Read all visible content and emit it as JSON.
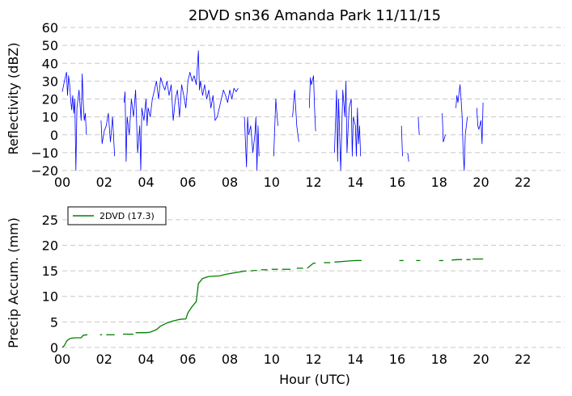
{
  "figure": {
    "title": "2DVD sn36 Amanda Park 11/11/15",
    "xlabel": "Hour (UTC)"
  },
  "chart_data": [
    {
      "type": "line",
      "ylabel": "Reflectivity (dBZ)",
      "xlim": [
        0,
        24
      ],
      "ylim": [
        -20,
        60
      ],
      "x_ticks": [
        0,
        2,
        4,
        6,
        8,
        10,
        12,
        14,
        16,
        18,
        20,
        22
      ],
      "x_tick_labels": [
        "00",
        "02",
        "04",
        "06",
        "08",
        "10",
        "12",
        "14",
        "16",
        "18",
        "20",
        "22"
      ],
      "y_ticks": [
        -20,
        -10,
        0,
        10,
        20,
        30,
        40,
        50,
        60
      ],
      "y_tick_labels": [
        "−20",
        "−10",
        "0",
        "10",
        "20",
        "30",
        "40",
        "50",
        "60"
      ],
      "grid": "horizontal dashed",
      "legend": "none",
      "series": [
        {
          "color": "#0000ff",
          "segments": [
            [
              [
                0.0,
                24
              ],
              [
                0.1,
                30
              ],
              [
                0.2,
                35
              ],
              [
                0.25,
                22
              ],
              [
                0.3,
                33
              ],
              [
                0.35,
                28
              ],
              [
                0.4,
                20
              ],
              [
                0.45,
                14
              ],
              [
                0.5,
                22
              ],
              [
                0.55,
                12
              ],
              [
                0.6,
                20
              ],
              [
                0.65,
                -20
              ],
              [
                0.7,
                15
              ],
              [
                0.8,
                25
              ],
              [
                0.9,
                8
              ],
              [
                0.95,
                34
              ],
              [
                1.0,
                18
              ],
              [
                1.05,
                8
              ],
              [
                1.1,
                12
              ],
              [
                1.15,
                0
              ]
            ],
            [
              [
                1.85,
                8
              ],
              [
                1.9,
                -5
              ],
              [
                2.0,
                2
              ],
              [
                2.1,
                5
              ],
              [
                2.2,
                12
              ],
              [
                2.3,
                -4
              ],
              [
                2.4,
                10
              ],
              [
                2.5,
                -12
              ]
            ],
            [
              [
                2.95,
                18
              ],
              [
                3.0,
                24
              ],
              [
                3.05,
                -15
              ],
              [
                3.1,
                10
              ],
              [
                3.2,
                0
              ],
              [
                3.3,
                20
              ],
              [
                3.4,
                10
              ],
              [
                3.5,
                25
              ],
              [
                3.6,
                -10
              ],
              [
                3.7,
                5
              ],
              [
                3.75,
                -20
              ],
              [
                3.8,
                15
              ],
              [
                3.9,
                8
              ],
              [
                4.0,
                20
              ],
              [
                4.05,
                5
              ],
              [
                4.1,
                15
              ],
              [
                4.2,
                10
              ],
              [
                4.3,
                20
              ],
              [
                4.4,
                25
              ],
              [
                4.5,
                30
              ],
              [
                4.6,
                20
              ],
              [
                4.7,
                32
              ],
              [
                4.8,
                28
              ],
              [
                4.9,
                25
              ],
              [
                5.0,
                30
              ],
              [
                5.1,
                22
              ],
              [
                5.2,
                28
              ],
              [
                5.3,
                8
              ],
              [
                5.4,
                20
              ],
              [
                5.5,
                25
              ],
              [
                5.6,
                10
              ],
              [
                5.7,
                28
              ],
              [
                5.8,
                22
              ],
              [
                5.9,
                15
              ],
              [
                6.0,
                30
              ],
              [
                6.1,
                35
              ],
              [
                6.2,
                30
              ],
              [
                6.3,
                33
              ],
              [
                6.4,
                28
              ],
              [
                6.5,
                47
              ],
              [
                6.55,
                25
              ],
              [
                6.6,
                30
              ],
              [
                6.7,
                22
              ],
              [
                6.8,
                28
              ],
              [
                6.9,
                20
              ],
              [
                7.0,
                25
              ],
              [
                7.1,
                15
              ],
              [
                7.2,
                22
              ],
              [
                7.3,
                8
              ],
              [
                7.4,
                10
              ],
              [
                7.5,
                15
              ],
              [
                7.6,
                20
              ],
              [
                7.7,
                25
              ],
              [
                7.8,
                22
              ],
              [
                7.9,
                18
              ],
              [
                8.0,
                25
              ],
              [
                8.1,
                20
              ],
              [
                8.2,
                26
              ],
              [
                8.3,
                24
              ],
              [
                8.4,
                26
              ]
            ],
            [
              [
                8.7,
                10
              ],
              [
                8.8,
                -18
              ],
              [
                8.85,
                10
              ],
              [
                8.9,
                0
              ],
              [
                9.0,
                5
              ],
              [
                9.1,
                -10
              ],
              [
                9.2,
                0
              ],
              [
                9.25,
                10
              ],
              [
                9.3,
                -20
              ],
              [
                9.35,
                5
              ],
              [
                9.4,
                -12
              ]
            ],
            [
              [
                10.1,
                -12
              ],
              [
                10.2,
                20
              ],
              [
                10.3,
                5
              ]
            ],
            [
              [
                11.0,
                10
              ],
              [
                11.1,
                25
              ],
              [
                11.2,
                5
              ],
              [
                11.3,
                -4
              ]
            ],
            [
              [
                11.8,
                15
              ],
              [
                11.85,
                32
              ],
              [
                11.9,
                28
              ],
              [
                12.0,
                33
              ],
              [
                12.05,
                15
              ],
              [
                12.1,
                2
              ]
            ],
            [
              [
                13.0,
                -10
              ],
              [
                13.1,
                25
              ],
              [
                13.15,
                -15
              ],
              [
                13.2,
                20
              ],
              [
                13.3,
                -20
              ],
              [
                13.4,
                25
              ],
              [
                13.5,
                10
              ],
              [
                13.55,
                30
              ],
              [
                13.6,
                -10
              ],
              [
                13.7,
                15
              ],
              [
                13.8,
                20
              ],
              [
                13.85,
                -12
              ],
              [
                13.9,
                10
              ],
              [
                14.0,
                5
              ],
              [
                14.05,
                -12
              ],
              [
                14.1,
                15
              ],
              [
                14.15,
                -5
              ],
              [
                14.2,
                5
              ],
              [
                14.25,
                -12
              ]
            ],
            [
              [
                16.2,
                5
              ],
              [
                16.25,
                -12
              ]
            ],
            [
              [
                16.5,
                -10
              ],
              [
                16.55,
                -15
              ]
            ],
            [
              [
                17.0,
                10
              ],
              [
                17.05,
                0
              ]
            ],
            [
              [
                18.15,
                12
              ],
              [
                18.2,
                -4
              ],
              [
                18.3,
                0
              ]
            ],
            [
              [
                18.8,
                15
              ],
              [
                18.85,
                22
              ],
              [
                18.9,
                18
              ],
              [
                19.0,
                28
              ],
              [
                19.05,
                20
              ],
              [
                19.1,
                10
              ],
              [
                19.15,
                -10
              ],
              [
                19.2,
                -20
              ],
              [
                19.25,
                0
              ],
              [
                19.35,
                10
              ]
            ],
            [
              [
                19.8,
                15
              ],
              [
                19.85,
                5
              ],
              [
                19.9,
                3
              ],
              [
                20.0,
                8
              ],
              [
                20.05,
                -5
              ],
              [
                20.1,
                18
              ]
            ]
          ]
        }
      ]
    },
    {
      "type": "line",
      "ylabel": "Precip Accum. (mm)",
      "xlim": [
        0,
        24
      ],
      "ylim": [
        0,
        27.5
      ],
      "x_ticks": [
        0,
        2,
        4,
        6,
        8,
        10,
        12,
        14,
        16,
        18,
        20,
        22
      ],
      "x_tick_labels": [
        "00",
        "02",
        "04",
        "06",
        "08",
        "10",
        "12",
        "14",
        "16",
        "18",
        "20",
        "22"
      ],
      "y_ticks": [
        0,
        5,
        10,
        15,
        20,
        25
      ],
      "y_tick_labels": [
        "0",
        "5",
        "10",
        "15",
        "20",
        "25"
      ],
      "grid": "horizontal dashed",
      "legend": "top-left",
      "series": [
        {
          "name": "2DVD (17.3)",
          "color": "#008000",
          "segments": [
            [
              [
                0.0,
                0.0
              ],
              [
                0.1,
                0.4
              ],
              [
                0.2,
                1.2
              ],
              [
                0.3,
                1.6
              ],
              [
                0.4,
                1.8
              ],
              [
                0.6,
                1.9
              ],
              [
                0.9,
                1.9
              ],
              [
                1.0,
                2.4
              ],
              [
                1.2,
                2.5
              ]
            ],
            [
              [
                1.8,
                2.5
              ],
              [
                1.9,
                2.5
              ]
            ],
            [
              [
                2.1,
                2.5
              ],
              [
                2.5,
                2.5
              ]
            ],
            [
              [
                2.9,
                2.6
              ],
              [
                3.4,
                2.6
              ]
            ],
            [
              [
                3.5,
                2.9
              ],
              [
                4.0,
                2.9
              ],
              [
                4.2,
                3.0
              ],
              [
                4.5,
                3.5
              ],
              [
                4.7,
                4.2
              ],
              [
                5.0,
                4.8
              ],
              [
                5.3,
                5.2
              ],
              [
                5.6,
                5.5
              ],
              [
                5.9,
                5.6
              ],
              [
                6.0,
                6.8
              ],
              [
                6.2,
                8.0
              ],
              [
                6.4,
                9.0
              ],
              [
                6.5,
                12.5
              ],
              [
                6.7,
                13.5
              ],
              [
                7.0,
                13.9
              ],
              [
                7.5,
                14.0
              ],
              [
                7.8,
                14.3
              ],
              [
                8.2,
                14.6
              ],
              [
                8.5,
                14.8
              ],
              [
                8.8,
                15.0
              ]
            ],
            [
              [
                9.0,
                15.0
              ],
              [
                9.3,
                15.1
              ]
            ],
            [
              [
                9.5,
                15.2
              ],
              [
                9.8,
                15.2
              ]
            ],
            [
              [
                10.0,
                15.3
              ],
              [
                10.3,
                15.3
              ]
            ],
            [
              [
                10.5,
                15.3
              ],
              [
                10.9,
                15.3
              ]
            ],
            [
              [
                11.2,
                15.5
              ],
              [
                11.5,
                15.5
              ]
            ],
            [
              [
                11.7,
                15.5
              ],
              [
                12.0,
                16.5
              ],
              [
                12.1,
                16.5
              ]
            ],
            [
              [
                12.5,
                16.6
              ],
              [
                12.8,
                16.6
              ]
            ],
            [
              [
                13.0,
                16.7
              ],
              [
                13.6,
                16.9
              ],
              [
                14.0,
                17.0
              ],
              [
                14.3,
                17.0
              ]
            ],
            [
              [
                16.1,
                17.0
              ],
              [
                16.3,
                17.0
              ]
            ],
            [
              [
                16.9,
                17.0
              ],
              [
                17.1,
                17.0
              ]
            ],
            [
              [
                18.0,
                17.0
              ],
              [
                18.2,
                17.0
              ]
            ],
            [
              [
                18.6,
                17.1
              ],
              [
                18.9,
                17.2
              ],
              [
                19.1,
                17.2
              ]
            ],
            [
              [
                19.3,
                17.2
              ],
              [
                19.5,
                17.2
              ]
            ],
            [
              [
                19.6,
                17.3
              ],
              [
                20.1,
                17.3
              ]
            ]
          ]
        }
      ]
    }
  ]
}
